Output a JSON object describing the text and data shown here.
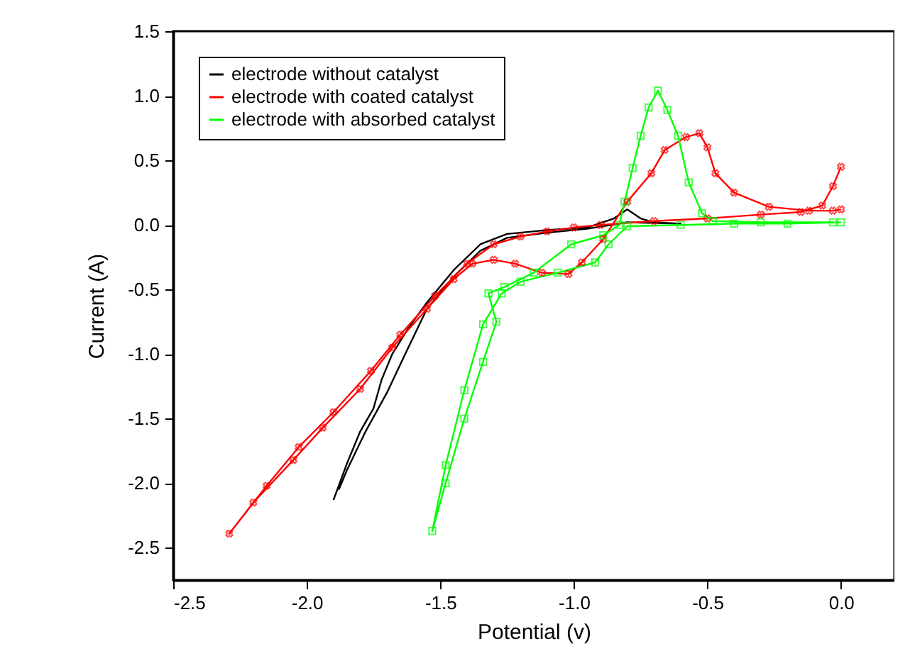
{
  "chart_data": {
    "type": "line",
    "xlabel": "Potential (v)",
    "ylabel": "Current (A)",
    "xlim": [
      -2.5,
      0.2
    ],
    "ylim": [
      -2.75,
      1.5
    ],
    "xticks": [
      {
        "value": -2.5,
        "label": "-2.5"
      },
      {
        "value": -2,
        "label": "-2.0"
      },
      {
        "value": -1.5,
        "label": "-1.5"
      },
      {
        "value": -1,
        "label": "-1.0"
      },
      {
        "value": -0.5,
        "label": "-0.5"
      },
      {
        "value": 0,
        "label": "0.0"
      }
    ],
    "yticks": [
      {
        "value": -2.5,
        "label": "-2.5"
      },
      {
        "value": -2,
        "label": "-2.0"
      },
      {
        "value": -1.5,
        "label": "-1.5"
      },
      {
        "value": -1,
        "label": "-1.0"
      },
      {
        "value": -0.5,
        "label": "-0.5"
      },
      {
        "value": 0,
        "label": "0.0"
      },
      {
        "value": 0.5,
        "label": "0.5"
      },
      {
        "value": 1,
        "label": "1.0"
      },
      {
        "value": 1.5,
        "label": "1.5"
      }
    ],
    "grid": false,
    "legend": "top left",
    "line_style": "solid",
    "series": [
      {
        "name": "electrode without catalyst",
        "color": "#000000",
        "marker": "none",
        "x": [
          -1.9,
          -1.85,
          -1.8,
          -1.75,
          -1.72,
          -1.68,
          -1.62,
          -1.55,
          -1.45,
          -1.35,
          -1.25,
          -1.1,
          -0.95,
          -0.85,
          -0.8,
          -0.75,
          -0.7,
          -0.6,
          -0.8,
          -0.95,
          -1.1,
          -1.25,
          -1.35,
          -1.45,
          -1.55,
          -1.62,
          -1.7,
          -1.78,
          -1.85,
          -1.88
        ],
        "values": [
          -2.13,
          -1.85,
          -1.6,
          -1.42,
          -1.2,
          -1.0,
          -0.8,
          -0.6,
          -0.35,
          -0.15,
          -0.07,
          -0.04,
          -0.02,
          0.05,
          0.12,
          0.05,
          0.02,
          0.01,
          0.02,
          -0.03,
          -0.06,
          -0.1,
          -0.2,
          -0.4,
          -0.65,
          -0.95,
          -1.3,
          -1.6,
          -1.9,
          -2.05
        ]
      },
      {
        "name": "electrode with coated catalyst",
        "color": "#ff0000",
        "marker": "cross",
        "x": [
          0.0,
          -0.03,
          -0.07,
          -0.15,
          -0.3,
          -0.5,
          -0.7,
          -0.9,
          -1.0,
          -1.1,
          -1.2,
          -1.3,
          -1.4,
          -1.52,
          -1.65,
          -1.76,
          -1.9,
          -2.03,
          -2.15,
          -2.29,
          -2.2,
          -2.05,
          -1.94,
          -1.8,
          -1.68,
          -1.55,
          -1.45,
          -1.38,
          -1.3,
          -1.22,
          -1.12,
          -1.02,
          -0.97,
          -0.89,
          -0.8,
          -0.71,
          -0.66,
          -0.58,
          -0.53,
          -0.5,
          -0.47,
          -0.4,
          -0.27,
          -0.12,
          -0.03,
          0.0
        ],
        "values": [
          0.45,
          0.3,
          0.15,
          0.1,
          0.08,
          0.05,
          0.03,
          0.0,
          -0.02,
          -0.05,
          -0.09,
          -0.15,
          -0.3,
          -0.55,
          -0.85,
          -1.13,
          -1.45,
          -1.72,
          -2.02,
          -2.39,
          -2.15,
          -1.82,
          -1.57,
          -1.27,
          -0.95,
          -0.65,
          -0.42,
          -0.3,
          -0.27,
          -0.3,
          -0.37,
          -0.38,
          -0.29,
          -0.11,
          0.18,
          0.4,
          0.58,
          0.68,
          0.71,
          0.6,
          0.4,
          0.25,
          0.14,
          0.11,
          0.11,
          0.12
        ]
      },
      {
        "name": "electrode with absorbed catalyst",
        "color": "#00ff00",
        "marker": "square",
        "x": [
          0.0,
          -0.2,
          -0.4,
          -0.6,
          -0.8,
          -0.87,
          -0.92,
          -1.06,
          -1.2,
          -1.27,
          -1.34,
          -1.41,
          -1.48,
          -1.53,
          -1.48,
          -1.41,
          -1.34,
          -1.29,
          -1.32,
          -1.26,
          -1.15,
          -1.01,
          -0.89,
          -0.83,
          -0.81,
          -0.78,
          -0.75,
          -0.72,
          -0.685,
          -0.65,
          -0.61,
          -0.57,
          -0.52,
          -0.48,
          -0.3,
          -0.03
        ],
        "values": [
          0.02,
          0.01,
          0.01,
          0.0,
          -0.01,
          -0.15,
          -0.29,
          -0.37,
          -0.44,
          -0.53,
          -0.77,
          -1.28,
          -1.86,
          -2.37,
          -2.0,
          -1.5,
          -1.06,
          -0.75,
          -0.53,
          -0.48,
          -0.37,
          -0.15,
          -0.08,
          0.0,
          0.18,
          0.44,
          0.69,
          0.91,
          1.04,
          0.89,
          0.69,
          0.33,
          0.09,
          0.03,
          0.02,
          0.02
        ]
      }
    ]
  }
}
